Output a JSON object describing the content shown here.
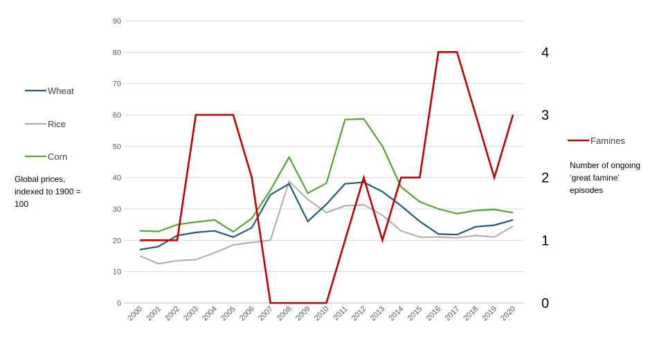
{
  "chart_data": {
    "type": "line",
    "x": [
      "2000",
      "2001",
      "2002",
      "2003",
      "2004",
      "2005",
      "2006",
      "2007",
      "2008",
      "2009",
      "2010",
      "2011",
      "2012",
      "2013",
      "2014",
      "2015",
      "2016",
      "2017",
      "2018",
      "2019",
      "2020"
    ],
    "left_axis": {
      "ylim": [
        0,
        90
      ],
      "ticks": [
        0,
        10,
        20,
        30,
        40,
        50,
        60,
        70,
        80,
        90
      ]
    },
    "right_axis": {
      "ylim": [
        0,
        4.5
      ],
      "ticks": [
        0,
        1,
        2,
        3,
        4
      ]
    },
    "series": [
      {
        "name": "Wheat",
        "axis": "left",
        "color": "#1f5a7d",
        "values": [
          17,
          18,
          21.5,
          22.5,
          23,
          21,
          24,
          34.5,
          38,
          26,
          31.5,
          38,
          38.5,
          35.5,
          31,
          26,
          22,
          21.8,
          24.3,
          24.8,
          26.5
        ]
      },
      {
        "name": "Rice",
        "axis": "left",
        "color": "#b0b0b0",
        "values": [
          15,
          12.5,
          13.5,
          13.8,
          16,
          18.5,
          19.3,
          20,
          38.8,
          33,
          28.8,
          31,
          31.3,
          28,
          23,
          21,
          21,
          20.8,
          21.5,
          21,
          24.5
        ]
      },
      {
        "name": "Corn",
        "axis": "left",
        "color": "#4ea72e",
        "values": [
          23,
          22.8,
          25,
          25.8,
          26.5,
          22.7,
          27,
          36,
          46.5,
          35,
          38.2,
          58.5,
          58.7,
          50,
          37,
          32.3,
          30,
          28.5,
          29.5,
          29.8,
          28.8
        ]
      },
      {
        "name": "Famines",
        "axis": "right",
        "color": "#c00000",
        "values": [
          1,
          1,
          1,
          3,
          3,
          3,
          2,
          0,
          0,
          0,
          0,
          1,
          2,
          1,
          2,
          2,
          4,
          4,
          3,
          2,
          3
        ]
      }
    ],
    "left_axis_note": "Global prices, indexed to 1900 = 100",
    "right_axis_note": "Number of ongoing ‘great famine’ episodes",
    "legend": [
      "Wheat",
      "Rice",
      "Corn",
      "Famines"
    ],
    "grid": true
  }
}
